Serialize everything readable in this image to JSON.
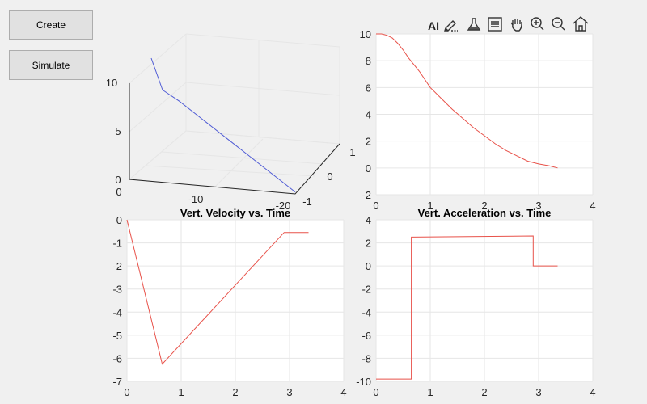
{
  "buttons": {
    "create": "Create",
    "simulate": "Simulate"
  },
  "toolbar": {
    "ai_label": "AI",
    "icons": [
      "edit-icon",
      "flask-icon",
      "legend-icon",
      "pan-icon",
      "zoom-in-icon",
      "zoom-out-icon",
      "home-icon"
    ]
  },
  "colors": {
    "line_3d": "#4f5bd5",
    "line_2d": "#e8524a",
    "grid": "#e6e6e6",
    "background": "#f0f0f0"
  },
  "chart_data": [
    {
      "type": "line",
      "title": "",
      "projection": "3d",
      "z_ticks": [
        "0",
        "5",
        "10"
      ],
      "x_ticks": [
        "0",
        "-10",
        "-20"
      ],
      "y_ticks": [
        "-1",
        "0",
        "1"
      ],
      "series": [
        {
          "x": [
            -2,
            -4,
            -6,
            -8,
            -10,
            -12,
            -14,
            -16,
            -18,
            -20
          ],
          "y": [
            0,
            0,
            0,
            0,
            0,
            0,
            0,
            0,
            0,
            0
          ],
          "z": [
            10,
            9.6,
            8.6,
            7.4,
            6.2,
            5.0,
            3.8,
            2.6,
            1.4,
            0.2
          ]
        }
      ]
    },
    {
      "type": "line",
      "title": "",
      "xlim": [
        0,
        4
      ],
      "ylim": [
        -2,
        10
      ],
      "x_ticks": [
        "0",
        "1",
        "2",
        "3",
        "4"
      ],
      "y_ticks": [
        "-2",
        "0",
        "2",
        "4",
        "6",
        "8",
        "10"
      ],
      "series": [
        {
          "x": [
            0,
            0.1,
            0.2,
            0.3,
            0.4,
            0.5,
            0.6,
            0.8,
            1.0,
            1.2,
            1.4,
            1.6,
            1.8,
            2.0,
            2.2,
            2.4,
            2.6,
            2.8,
            3.0,
            3.2,
            3.35
          ],
          "y": [
            10,
            10,
            9.9,
            9.7,
            9.3,
            8.8,
            8.2,
            7.2,
            6.0,
            5.2,
            4.4,
            3.7,
            3.0,
            2.4,
            1.8,
            1.3,
            0.9,
            0.5,
            0.3,
            0.15,
            0
          ]
        }
      ]
    },
    {
      "type": "line",
      "title": "Vert. Velocity vs. Time",
      "xlim": [
        0,
        4
      ],
      "ylim": [
        -7,
        0
      ],
      "x_ticks": [
        "0",
        "1",
        "2",
        "3",
        "4"
      ],
      "y_ticks": [
        "-7",
        "-6",
        "-5",
        "-4",
        "-3",
        "-2",
        "-1",
        "0"
      ],
      "series": [
        {
          "x": [
            0,
            0.65,
            2.9,
            3.35
          ],
          "y": [
            0,
            -6.25,
            -0.55,
            -0.55
          ]
        }
      ]
    },
    {
      "type": "line",
      "title": "Vert. Acceleration vs. Time",
      "xlim": [
        0,
        4
      ],
      "ylim": [
        -10,
        4
      ],
      "x_ticks": [
        "0",
        "1",
        "2",
        "3",
        "4"
      ],
      "y_ticks": [
        "-10",
        "-8",
        "-6",
        "-4",
        "-2",
        "0",
        "2",
        "4"
      ],
      "series": [
        {
          "x": [
            0,
            0.65,
            0.65,
            2.9,
            2.9,
            3.35
          ],
          "y": [
            -9.8,
            -9.8,
            2.5,
            2.6,
            0,
            0
          ]
        }
      ]
    }
  ]
}
